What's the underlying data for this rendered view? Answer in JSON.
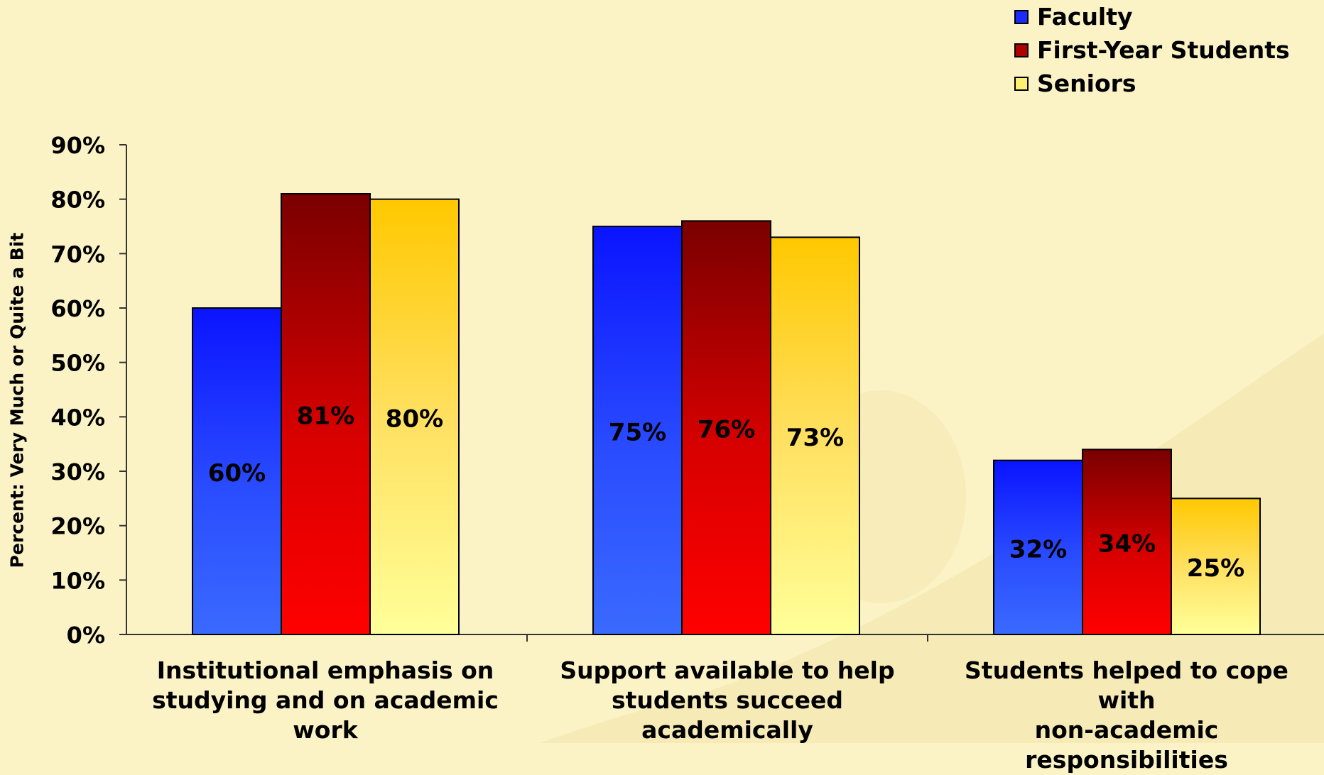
{
  "chart_data": {
    "type": "bar",
    "categories": [
      "Institutional emphasis on studying and on academic work",
      "Support available to help students succeed academically",
      "Students helped to cope with non-academic responsibilities"
    ],
    "category_lines": [
      [
        "Institutional emphasis on",
        "studying and on academic",
        "work"
      ],
      [
        "Support available to help",
        "students succeed",
        "academically"
      ],
      [
        "Students helped to cope with",
        "non-academic responsibilities"
      ]
    ],
    "series": [
      {
        "name": "Faculty",
        "values": [
          60,
          75,
          32
        ],
        "labels": [
          "60%",
          "75%",
          "32%"
        ],
        "color": "#1a2cff"
      },
      {
        "name": "First-Year Students",
        "values": [
          81,
          76,
          34
        ],
        "labels": [
          "81%",
          "76%",
          "34%"
        ],
        "color": "#b00000"
      },
      {
        "name": "Seniors",
        "values": [
          80,
          73,
          25
        ],
        "labels": [
          "80%",
          "73%",
          "25%"
        ],
        "color": "#ffd740"
      }
    ],
    "ylabel": "Percent: Very Much or Quite a Bit",
    "ylim": [
      0,
      90
    ],
    "yticks": [
      "0%",
      "10%",
      "20%",
      "30%",
      "40%",
      "50%",
      "60%",
      "70%",
      "80%",
      "90%"
    ],
    "legend_position": "top-right",
    "grid": false
  }
}
